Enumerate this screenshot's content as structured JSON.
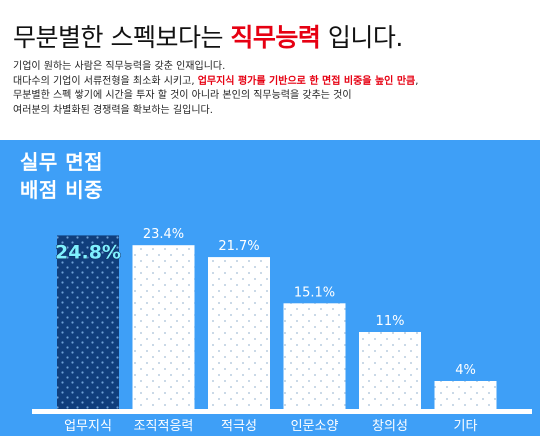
{
  "header": {
    "headline_before": "무분별한 스펙보다는 ",
    "headline_highlight": "직무능력",
    "headline_after": " 입니다.",
    "line1": "기업이 원하는 사람은 직무능력을 갖춘 인재입니다.",
    "line2_before": "대다수의 기업이 서류전형을 최소화 시키고, ",
    "line2_highlight": "업무지식 평가를 기반으로 한 면접 비중을 높인 만큼",
    "line2_after": ",",
    "line3": "무분별한 스펙 쌓기에 시간을 투자 할 것이 아니라 본인의 직무능력을 갖추는 것이",
    "line4": "여러분의 차별화된 경쟁력을 확보하는 길입니다."
  },
  "colors": {
    "panel": "#3e9ff7",
    "highlight_text": "#e60012",
    "bar": "#ffffff",
    "bar_dots": "#b9cde0",
    "featured_bar": "#103e7c",
    "featured_dots": "#6fa0d6",
    "featured_label": "#7ff0ff"
  },
  "chart_data": {
    "type": "bar",
    "title_line1": "실무 면접",
    "title_line2": "배점 비중",
    "categories": [
      "업무지식",
      "조직적응력",
      "적극성",
      "인문소양",
      "창의성",
      "기타"
    ],
    "values": [
      24.8,
      23.4,
      21.7,
      15.1,
      11,
      4
    ],
    "value_labels": [
      "24.8%",
      "23.4%",
      "21.7%",
      "15.1%",
      "11%",
      "4%"
    ],
    "highlight_index": 0,
    "ylim": [
      0,
      26
    ]
  }
}
